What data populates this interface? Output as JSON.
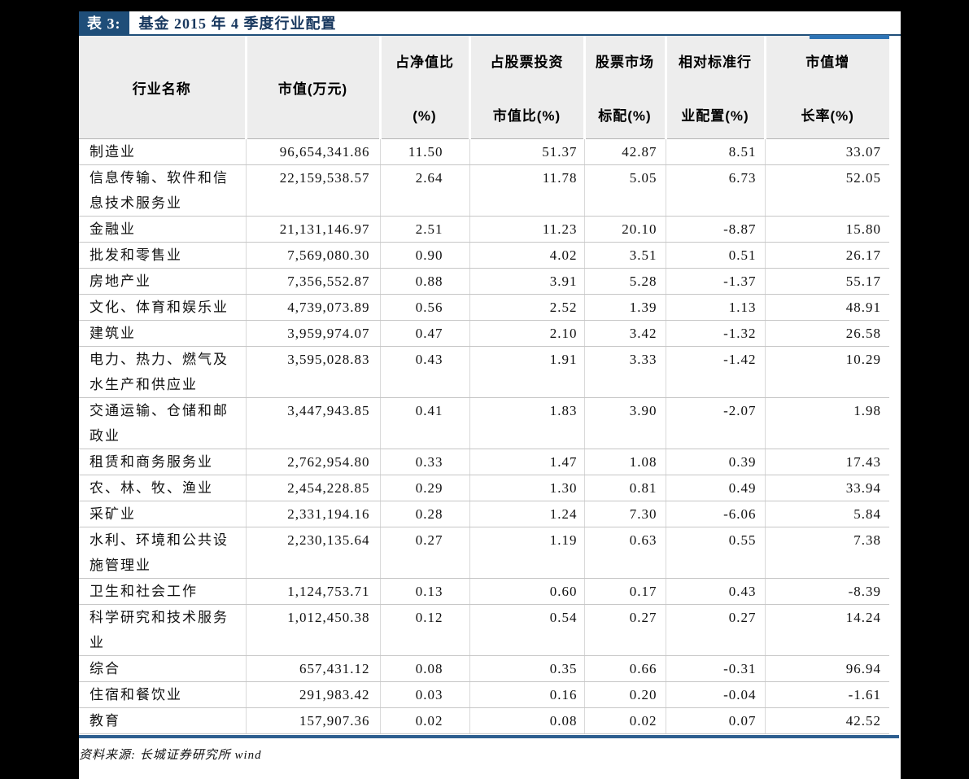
{
  "title": {
    "label": "表 3:",
    "text": "基金 2015 年 4 季度行业配置"
  },
  "colors": {
    "title_box_blue": "#1F4E79",
    "title_text_blue": "#17375E",
    "accent_bar_blue": "#2E74B5",
    "bottom_rule_blue": "#2D5E8F",
    "header_gray": "#EDEDED"
  },
  "table": {
    "columns": [
      {
        "key": "industry",
        "lines": [
          "行业名称"
        ]
      },
      {
        "key": "market-value",
        "lines": [
          "市值(万元)"
        ]
      },
      {
        "key": "pct-of-net-value",
        "lines": [
          "占净值比",
          "(%)"
        ]
      },
      {
        "key": "pct-of-stock-investment",
        "lines": [
          "占股票投资",
          "市值比(%)"
        ]
      },
      {
        "key": "stock-market-benchmark",
        "lines": [
          "股票市场",
          "标配(%)"
        ]
      },
      {
        "key": "relative-benchmark-allocation",
        "lines": [
          "相对标准行",
          "业配置(%)"
        ]
      },
      {
        "key": "market-value-growth",
        "lines": [
          "市值增",
          "长率(%)"
        ]
      }
    ],
    "rows": [
      [
        "制造业",
        "96,654,341.86",
        "11.50",
        "51.37",
        "42.87",
        "8.51",
        "33.07"
      ],
      [
        "信息传输、软件和信息技术服务业",
        "22,159,538.57",
        "2.64",
        "11.78",
        "5.05",
        "6.73",
        "52.05"
      ],
      [
        "金融业",
        "21,131,146.97",
        "2.51",
        "11.23",
        "20.10",
        "-8.87",
        "15.80"
      ],
      [
        "批发和零售业",
        "7,569,080.30",
        "0.90",
        "4.02",
        "3.51",
        "0.51",
        "26.17"
      ],
      [
        "房地产业",
        "7,356,552.87",
        "0.88",
        "3.91",
        "5.28",
        "-1.37",
        "55.17"
      ],
      [
        "文化、体育和娱乐业",
        "4,739,073.89",
        "0.56",
        "2.52",
        "1.39",
        "1.13",
        "48.91"
      ],
      [
        "建筑业",
        "3,959,974.07",
        "0.47",
        "2.10",
        "3.42",
        "-1.32",
        "26.58"
      ],
      [
        "电力、热力、燃气及水生产和供应业",
        "3,595,028.83",
        "0.43",
        "1.91",
        "3.33",
        "-1.42",
        "10.29"
      ],
      [
        "交通运输、仓储和邮政业",
        "3,447,943.85",
        "0.41",
        "1.83",
        "3.90",
        "-2.07",
        "1.98"
      ],
      [
        "租赁和商务服务业",
        "2,762,954.80",
        "0.33",
        "1.47",
        "1.08",
        "0.39",
        "17.43"
      ],
      [
        "农、林、牧、渔业",
        "2,454,228.85",
        "0.29",
        "1.30",
        "0.81",
        "0.49",
        "33.94"
      ],
      [
        "采矿业",
        "2,331,194.16",
        "0.28",
        "1.24",
        "7.30",
        "-6.06",
        "5.84"
      ],
      [
        "水利、环境和公共设施管理业",
        "2,230,135.64",
        "0.27",
        "1.19",
        "0.63",
        "0.55",
        "7.38"
      ],
      [
        "卫生和社会工作",
        "1,124,753.71",
        "0.13",
        "0.60",
        "0.17",
        "0.43",
        "-8.39"
      ],
      [
        "科学研究和技术服务业",
        "1,012,450.38",
        "0.12",
        "0.54",
        "0.27",
        "0.27",
        "14.24"
      ],
      [
        "综合",
        "657,431.12",
        "0.08",
        "0.35",
        "0.66",
        "-0.31",
        "96.94"
      ],
      [
        "住宿和餐饮业",
        "291,983.42",
        "0.03",
        "0.16",
        "0.20",
        "-0.04",
        "-1.61"
      ],
      [
        "教育",
        "157,907.36",
        "0.02",
        "0.08",
        "0.02",
        "0.07",
        "42.52"
      ]
    ]
  },
  "footer": {
    "text": "资料来源: 长城证券研究所 wind"
  }
}
